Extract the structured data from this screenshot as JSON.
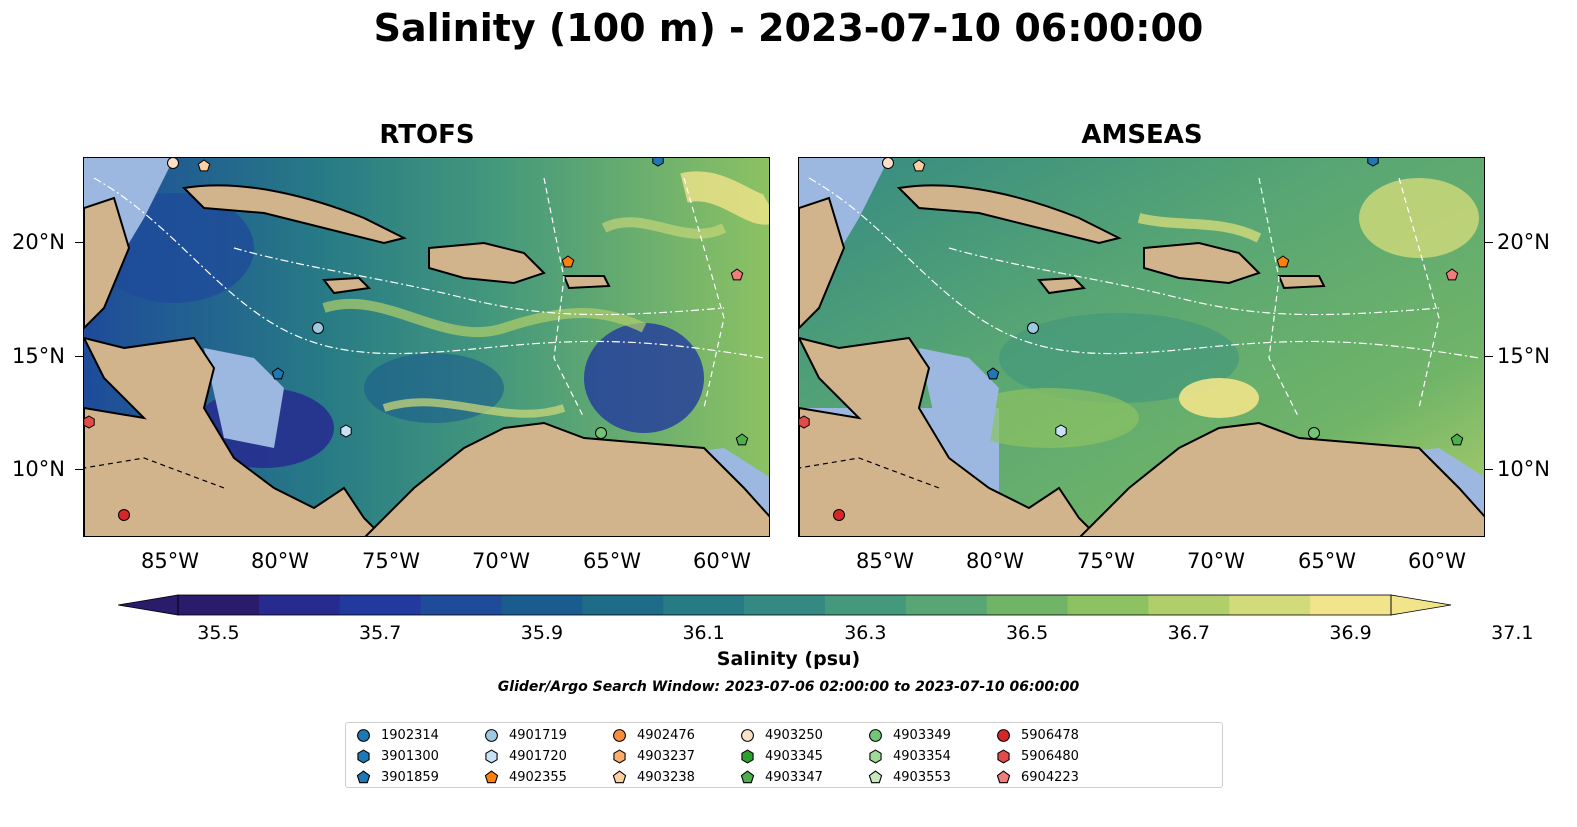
{
  "title": "Salinity (100 m) - 2023-07-10 06:00:00",
  "panels": [
    {
      "id": "rtofs",
      "title": "RTOFS"
    },
    {
      "id": "amseas",
      "title": "AMSEAS"
    }
  ],
  "lon_ticks": [
    "85°W",
    "80°W",
    "75°W",
    "70°W",
    "65°W",
    "60°W"
  ],
  "lat_ticks": [
    "20°N",
    "15°N",
    "10°N"
  ],
  "colorbar": {
    "label": "Salinity (psu)",
    "ticks": [
      "35.5",
      "35.7",
      "35.9",
      "36.1",
      "36.3",
      "36.5",
      "36.7",
      "36.9",
      "37.1"
    ],
    "colors": [
      "#2b1b6b",
      "#272a8f",
      "#22399e",
      "#1e4b9a",
      "#1a5c8e",
      "#1e6c88",
      "#277b85",
      "#348a82",
      "#44987c",
      "#58a674",
      "#70b468",
      "#8dc262",
      "#b0cf6a",
      "#d2db7a",
      "#f1e48a"
    ]
  },
  "search_window": "Glider/Argo Search Window: 2023-07-06 02:00:00 to 2023-07-10 06:00:00",
  "legend": [
    {
      "id": "1902314",
      "marker": "circle",
      "color": "#1f77b4"
    },
    {
      "id": "3901300",
      "marker": "hexagon",
      "color": "#1f77b4"
    },
    {
      "id": "3901859",
      "marker": "pentagon",
      "color": "#1f77b4"
    },
    {
      "id": "4901719",
      "marker": "circle",
      "color": "#9ecae1"
    },
    {
      "id": "4901720",
      "marker": "hexagon",
      "color": "#c6e2f5"
    },
    {
      "id": "4902355",
      "marker": "pentagon",
      "color": "#ff7f0e"
    },
    {
      "id": "4902476",
      "marker": "circle",
      "color": "#fd8d3c"
    },
    {
      "id": "4903237",
      "marker": "hexagon",
      "color": "#fdae6b"
    },
    {
      "id": "4903238",
      "marker": "pentagon",
      "color": "#fdd0a2"
    },
    {
      "id": "4903250",
      "marker": "circle",
      "color": "#fde0c5"
    },
    {
      "id": "4903345",
      "marker": "hexagon",
      "color": "#2ca02c"
    },
    {
      "id": "4903347",
      "marker": "pentagon",
      "color": "#4daf4a"
    },
    {
      "id": "4903349",
      "marker": "circle",
      "color": "#74c476"
    },
    {
      "id": "4903354",
      "marker": "hexagon",
      "color": "#a1d99b"
    },
    {
      "id": "4903553",
      "marker": "pentagon",
      "color": "#c7e9c0"
    },
    {
      "id": "5906478",
      "marker": "circle",
      "color": "#d62728"
    },
    {
      "id": "5906480",
      "marker": "hexagon",
      "color": "#e34a4a"
    },
    {
      "id": "6904223",
      "marker": "pentagon",
      "color": "#f07c7c"
    }
  ],
  "map_colors": {
    "land": "#d2b48c",
    "shelf": "#9cb8e0"
  }
}
